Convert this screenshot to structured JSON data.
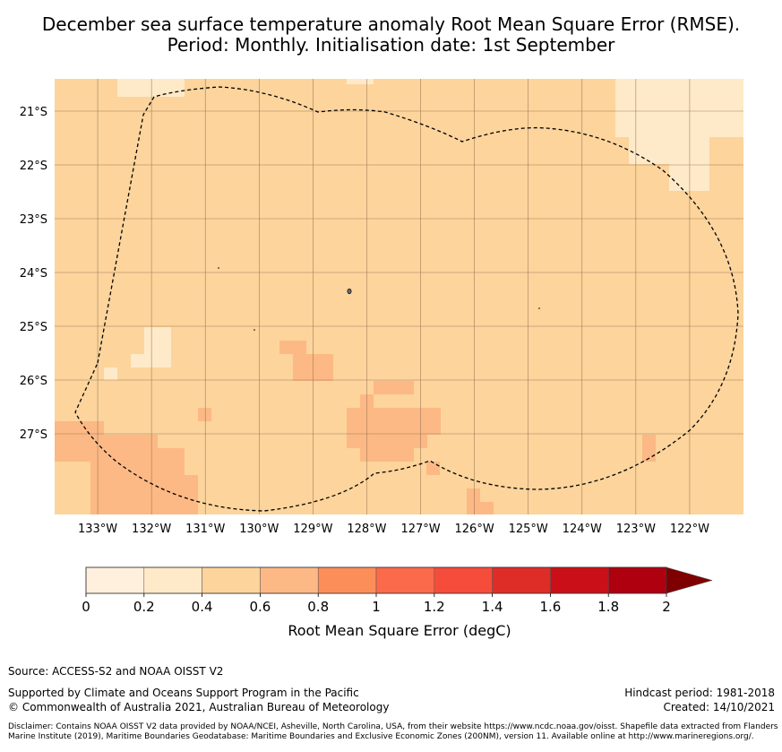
{
  "title": {
    "line1": "December sea surface temperature anomaly Root Mean Square Error (RMSE).",
    "line2": "Period: Monthly. Initialisation date: 1st September"
  },
  "map": {
    "lat_labels": [
      "21°S",
      "22°S",
      "23°S",
      "24°S",
      "25°S",
      "26°S",
      "27°S"
    ],
    "lon_labels": [
      "133°W",
      "132°W",
      "131°W",
      "130°W",
      "129°W",
      "128°W",
      "127°W",
      "126°W",
      "125°W",
      "124°W",
      "123°W",
      "122°W"
    ],
    "extent": {
      "lon_min": -133.8,
      "lon_max": -121.0,
      "lat_min": -28.5,
      "lat_max": -20.4
    },
    "colors": {
      "base": "#fcd49c",
      "low": "#feeac9",
      "mid": "#fcb985",
      "eez_line": "#000000",
      "gridline": "#8a6a4a"
    }
  },
  "colorbar": {
    "ticks": [
      "0",
      "0.2",
      "0.4",
      "0.6",
      "0.8",
      "1",
      "1.2",
      "1.4",
      "1.6",
      "1.8",
      "2"
    ],
    "colors": [
      "#fff0dd",
      "#feeac9",
      "#fcd49c",
      "#fcb985",
      "#fc8e5a",
      "#fb6a4a",
      "#f64c3c",
      "#de2d26",
      "#cb0f18",
      "#af0010",
      "#7f0000"
    ],
    "label": "Root Mean Square Error (degC)"
  },
  "footer": {
    "source": "Source: ACCESS-S2 and NOAA OISST V2",
    "supported": "Supported by Climate and Oceans Support Program in the Pacific",
    "copyright": "© Commonwealth of Australia 2021, Australian Bureau of Meteorology",
    "hindcast": "Hindcast period: 1981-2018",
    "created": "Created: 14/10/2021",
    "disclaimer": "Disclaimer: Contains NOAA OISST V2 data provided by NOAA/NCEI, Asheville, North Carolina, USA, from their website https://www.ncdc.noaa.gov/oisst. Shapefile data extracted from Flanders Marine Institute (2019), Maritime Boundaries Geodatabase: Maritime Boundaries and Exclusive Economic Zones (200NM), version 11. Available online at http://www.marineregions.org/."
  }
}
